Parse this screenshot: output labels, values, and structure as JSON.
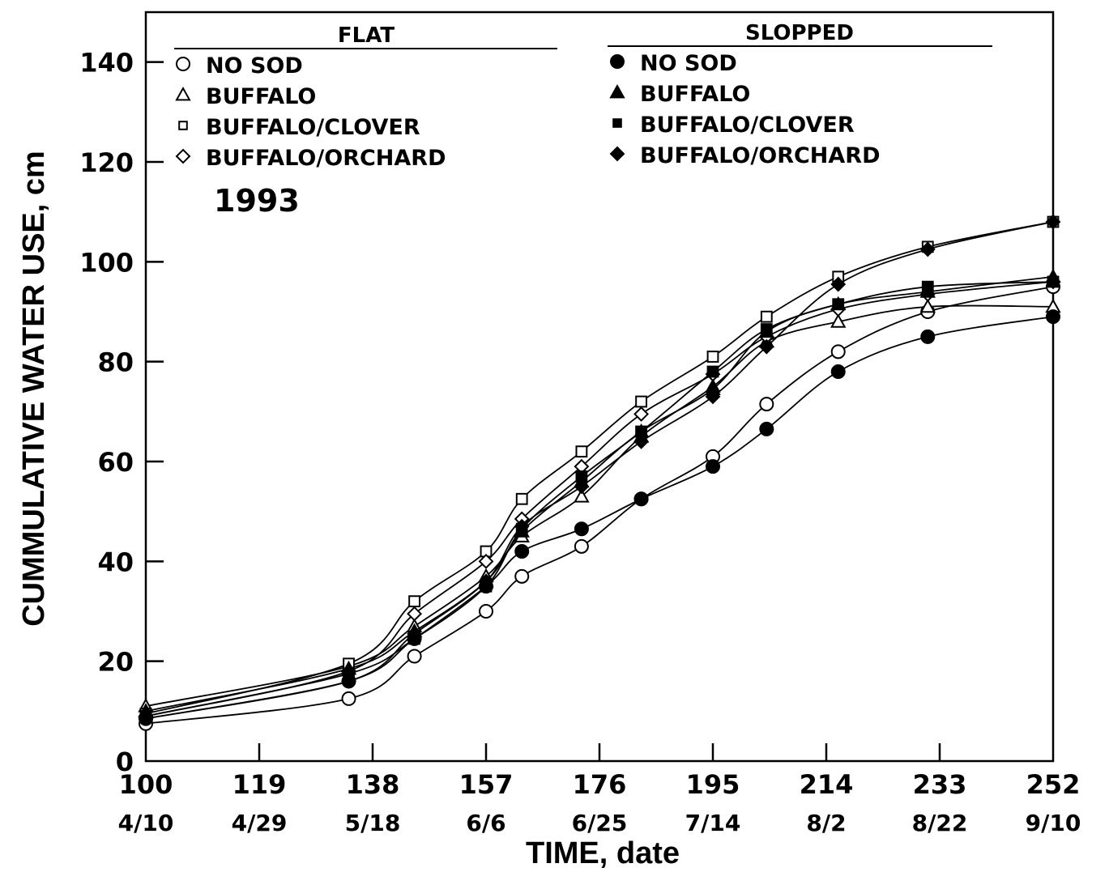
{
  "chart_data": {
    "type": "line",
    "xlabel": "TIME, date",
    "ylabel": "CUMMULATIVE WATER USE, cm",
    "xlim": [
      100,
      252
    ],
    "ylim": [
      0,
      150
    ],
    "x_ticks": [
      100,
      119,
      138,
      157,
      176,
      195,
      214,
      233,
      252
    ],
    "x_tick_dates": [
      "4/10",
      "4/29",
      "5/18",
      "6/6",
      "6/25",
      "7/14",
      "8/2",
      "8/22",
      "9/10"
    ],
    "y_ticks": [
      0,
      20,
      40,
      60,
      80,
      100,
      120,
      140
    ],
    "annotation": "1993",
    "legend_groups": [
      {
        "header": "FLAT",
        "items": [
          "NO SOD",
          "BUFFALO",
          "BUFFALO/CLOVER",
          "BUFFALO/ORCHARD"
        ]
      },
      {
        "header": "SLOPPED",
        "items": [
          "NO SOD",
          "BUFFALO",
          "BUFFALO/CLOVER",
          "BUFFALO/ORCHARD"
        ]
      }
    ],
    "x": [
      100,
      134,
      145,
      157,
      163,
      173,
      183,
      195,
      204,
      216,
      231,
      252
    ],
    "series": [
      {
        "name": "NO SOD",
        "group": "FLAT",
        "marker": "circle",
        "filled": false,
        "values": [
          7.5,
          12.5,
          21,
          30,
          37,
          43,
          52.5,
          61,
          71.5,
          82,
          90,
          95
        ]
      },
      {
        "name": "BUFFALO",
        "group": "FLAT",
        "marker": "triangle",
        "filled": false,
        "values": [
          11,
          19,
          27,
          37,
          45,
          53,
          65,
          75,
          84,
          88,
          91,
          91
        ]
      },
      {
        "name": "BUFFALO/CLOVER",
        "group": "FLAT",
        "marker": "square",
        "filled": false,
        "values": [
          9.5,
          19.5,
          32,
          42,
          52.5,
          62,
          72,
          81,
          89,
          97,
          103,
          108
        ]
      },
      {
        "name": "BUFFALO/ORCHARD",
        "group": "FLAT",
        "marker": "diamond",
        "filled": false,
        "values": [
          9,
          18,
          29.5,
          40,
          48.5,
          59,
          69.5,
          77.5,
          85,
          90.5,
          93.5,
          96
        ]
      },
      {
        "name": "NO SOD",
        "group": "SLOPPED",
        "marker": "circle",
        "filled": true,
        "values": [
          8.5,
          16,
          24.5,
          35,
          42,
          46.5,
          52.5,
          59,
          66.5,
          78,
          85,
          89
        ]
      },
      {
        "name": "BUFFALO",
        "group": "SLOPPED",
        "marker": "triangle",
        "filled": true,
        "values": [
          10,
          18.5,
          26,
          36,
          46,
          56,
          66,
          74.5,
          86,
          91.5,
          94,
          97
        ]
      },
      {
        "name": "BUFFALO/CLOVER",
        "group": "SLOPPED",
        "marker": "square",
        "filled": true,
        "values": [
          9,
          17.5,
          24.5,
          35,
          46.5,
          57,
          66,
          78,
          86.5,
          91.5,
          95,
          96
        ]
      },
      {
        "name": "BUFFALO/ORCHARD",
        "group": "SLOPPED",
        "marker": "diamond",
        "filled": true,
        "values": [
          8.5,
          16,
          25.5,
          36,
          47,
          55,
          64,
          73,
          83,
          95.5,
          102.5,
          108
        ]
      }
    ]
  }
}
